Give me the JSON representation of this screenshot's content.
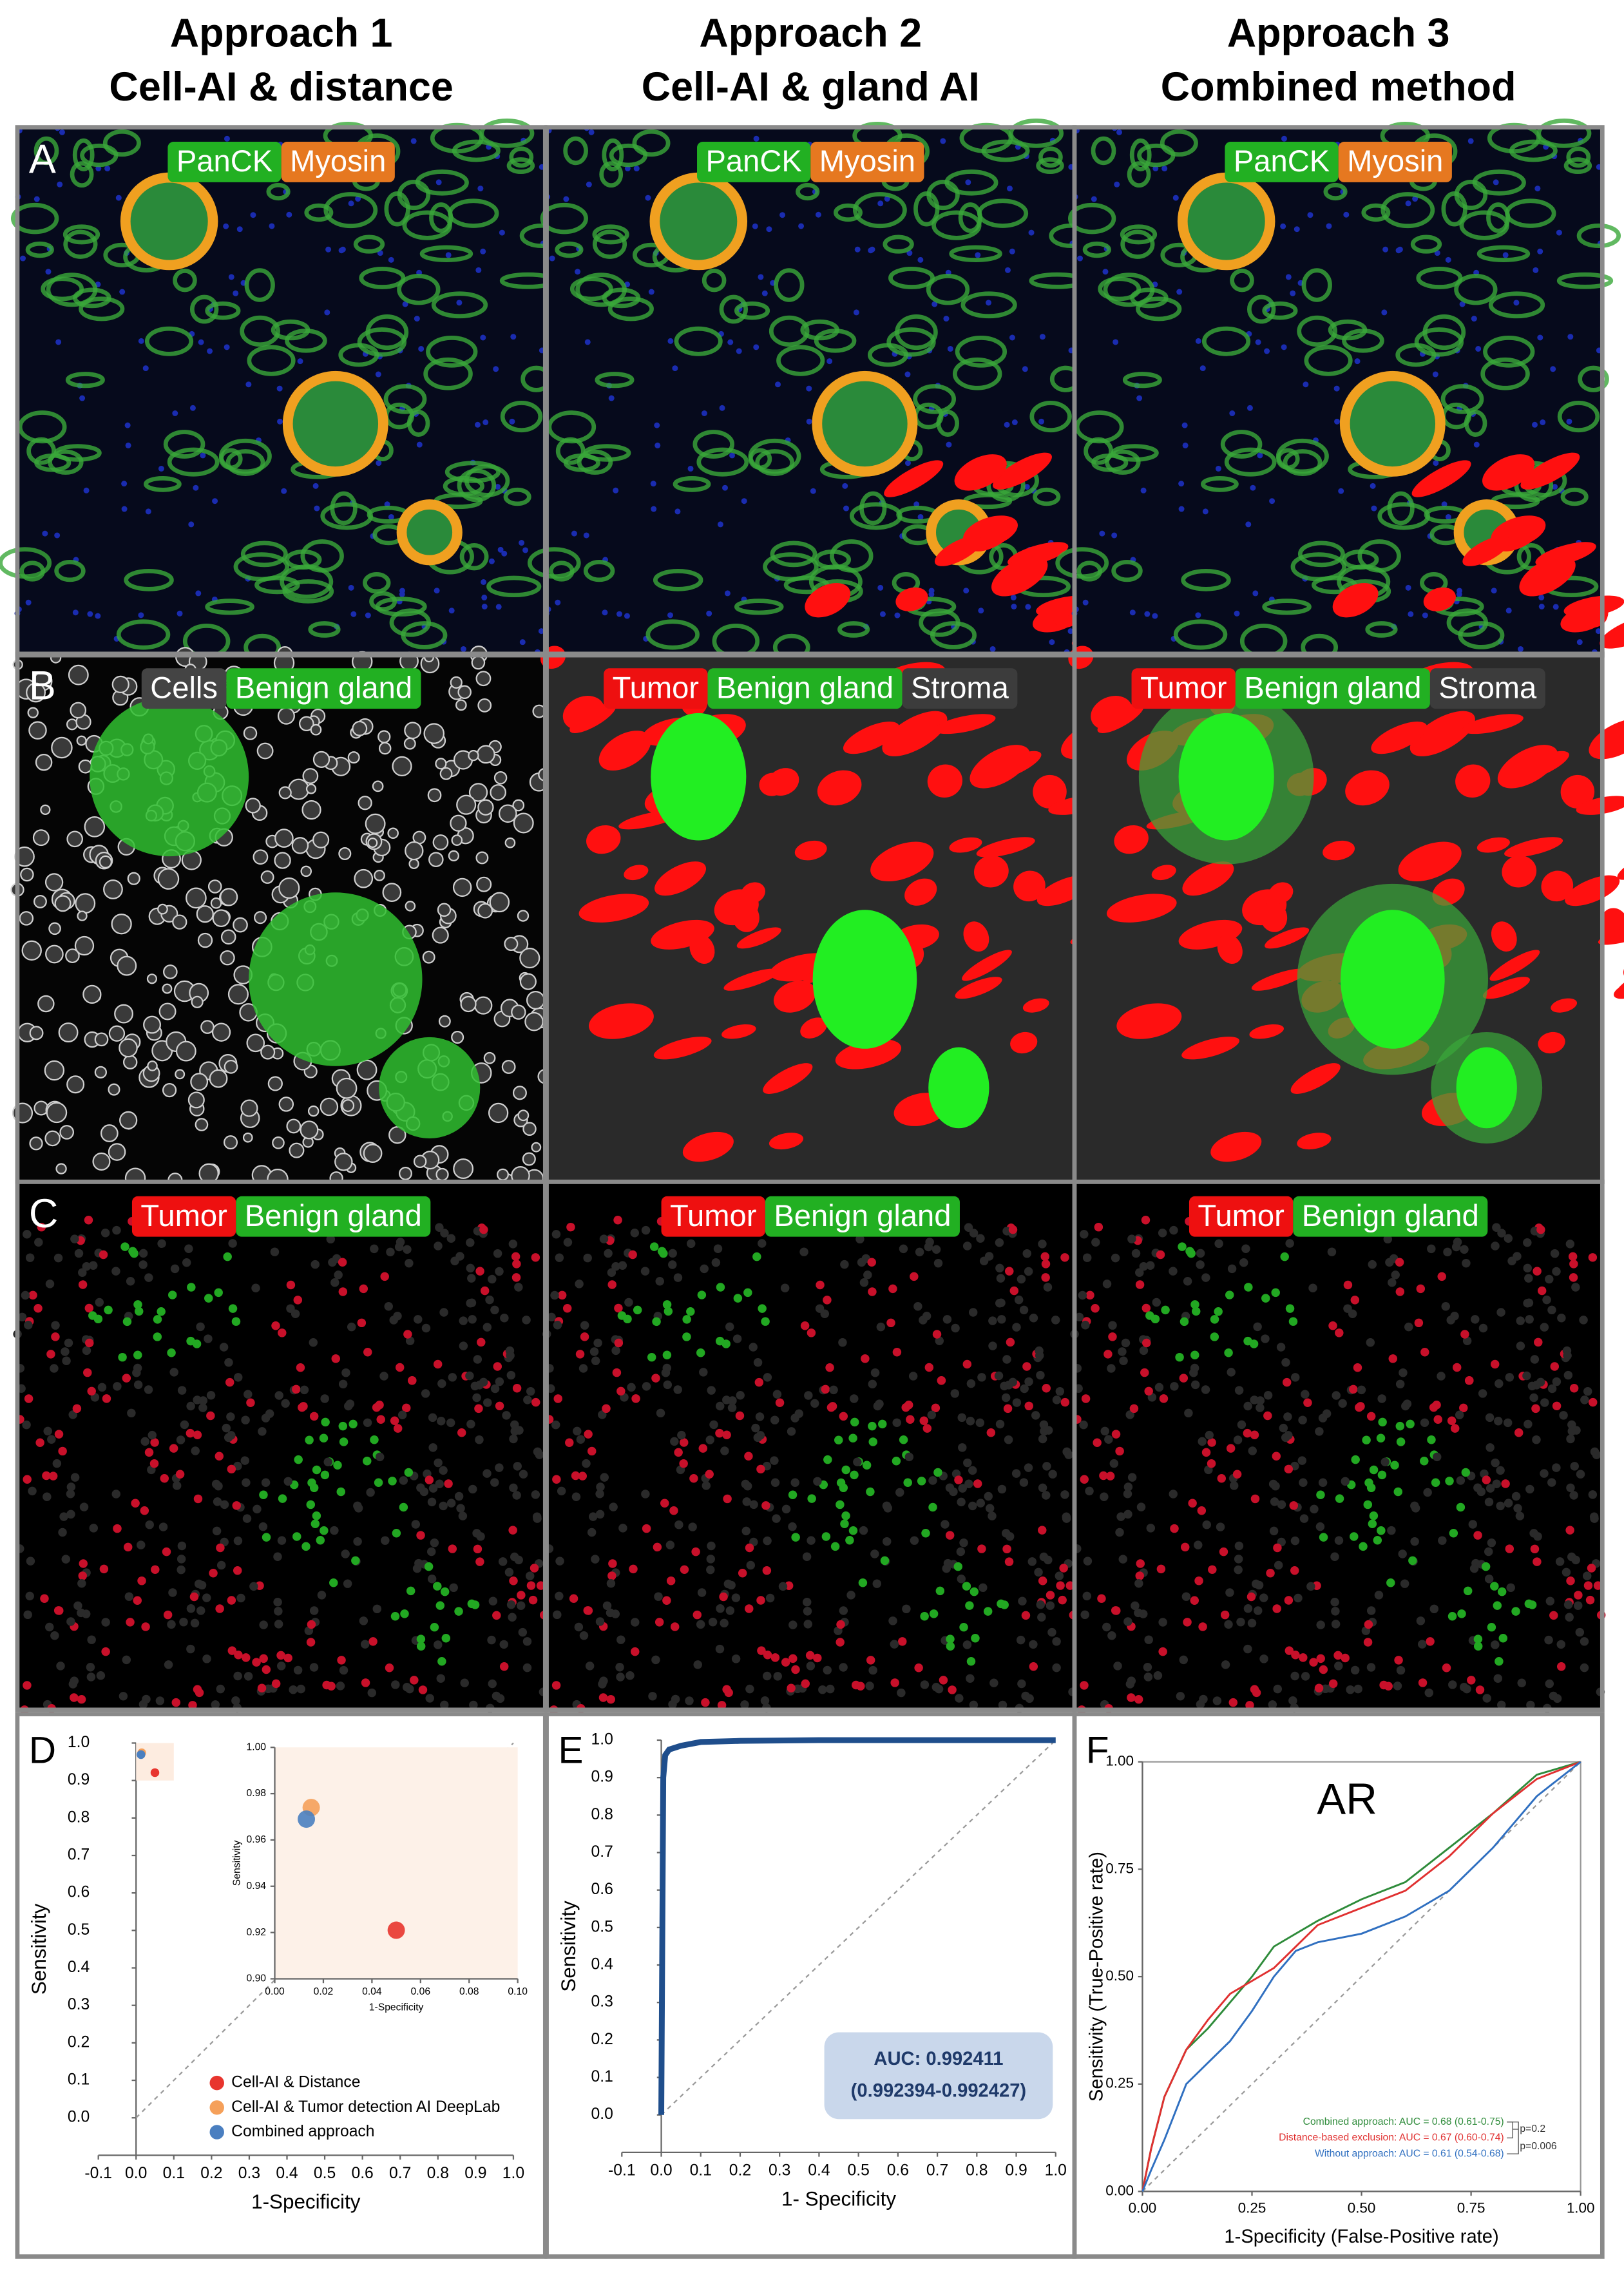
{
  "headers": [
    {
      "title": "Approach 1",
      "subtitle": "Cell-AI & distance"
    },
    {
      "title": "Approach 2",
      "subtitle": "Cell-AI & gland AI"
    },
    {
      "title": "Approach 3",
      "subtitle": "Combined method"
    }
  ],
  "rows": [
    {
      "label": "A",
      "columns": [
        {
          "legend": [
            "PanCK",
            "Myosin"
          ]
        },
        {
          "legend": [
            "PanCK",
            "Myosin"
          ]
        },
        {
          "legend": [
            "PanCK",
            "Myosin"
          ]
        }
      ]
    },
    {
      "label": "B",
      "columns": [
        {
          "legend": [
            "Cells",
            "Benign gland"
          ]
        },
        {
          "legend": [
            "Tumor",
            "Benign gland",
            "Stroma"
          ]
        },
        {
          "legend": [
            "Tumor",
            "Benign gland",
            "Stroma"
          ]
        }
      ]
    },
    {
      "label": "C",
      "columns": [
        {
          "legend": [
            "Tumor",
            "Benign gland"
          ]
        },
        {
          "legend": [
            "Tumor",
            "Benign gland"
          ]
        },
        {
          "legend": [
            "Tumor",
            "Benign gland"
          ]
        }
      ]
    }
  ],
  "chart_data": [
    {
      "panel": "D",
      "type": "scatter",
      "xlabel": "1-Specificity",
      "ylabel": "Sensitivity",
      "xlim": [
        -0.1,
        1.0
      ],
      "ylim": [
        -0.1,
        1.0
      ],
      "xticks": [
        -0.1,
        {
          "value": 0,
          "label": "0.0"
        },
        0.1,
        0.2,
        0.3,
        0.4,
        0.5,
        0.6,
        0.7,
        0.8,
        0.9,
        {
          "value": 1,
          "label": "1.0"
        }
      ],
      "yticks": [
        {
          "value": 0,
          "label": "0.0"
        },
        0.1,
        0.2,
        0.3,
        0.4,
        0.5,
        0.6,
        0.7,
        0.8,
        0.9,
        {
          "value": 1,
          "label": "1.0"
        }
      ],
      "series": [
        {
          "name": "Cell-AI & Distance",
          "color": "#e8352e",
          "x": [
            0.05
          ],
          "values": [
            0.921
          ]
        },
        {
          "name": "Cell-AI & Tumor detection AI DeepLab",
          "color": "#f5a05a",
          "x": [
            0.015
          ],
          "values": [
            0.974
          ]
        },
        {
          "name": "Combined approach",
          "color": "#4a7fc0",
          "x": [
            0.013
          ],
          "values": [
            0.969
          ]
        }
      ],
      "inset": {
        "xlabel": "1-Specificity",
        "ylabel": "Sensitivity",
        "xlim": [
          0,
          0.1
        ],
        "ylim": [
          0.9,
          1.0
        ],
        "xticks": [
          {
            "value": 0,
            "label": "0.00"
          },
          0.02,
          0.04,
          0.06,
          0.08,
          {
            "value": 0.1,
            "label": "0.10"
          }
        ],
        "yticks": [
          {
            "value": 0.9,
            "label": "0.90"
          },
          0.92,
          0.94,
          0.96,
          0.98,
          {
            "value": 1,
            "label": "1.00"
          }
        ]
      }
    },
    {
      "panel": "E",
      "type": "line",
      "xlabel": "1- Specificity",
      "ylabel": "Sensitivity",
      "xlim": [
        -0.1,
        1.0
      ],
      "ylim": [
        -0.1,
        1.0
      ],
      "xticks": [
        -0.1,
        {
          "value": 0,
          "label": "0.0"
        },
        0.1,
        0.2,
        0.3,
        0.4,
        0.5,
        0.6,
        0.7,
        0.8,
        0.9,
        {
          "value": 1,
          "label": "1.0"
        }
      ],
      "yticks": [
        {
          "value": 0,
          "label": "0.0"
        },
        0.1,
        0.2,
        0.3,
        0.4,
        0.5,
        0.6,
        0.7,
        0.8,
        0.9,
        {
          "value": 1,
          "label": "1.0"
        }
      ],
      "series": [
        {
          "color": "#1f4e8c",
          "x": [
            0,
            0.005,
            0.01,
            0.02,
            0.05,
            0.1,
            0.2,
            0.4,
            0.6,
            0.8,
            1.0
          ],
          "values": [
            0,
            0.9,
            0.96,
            0.975,
            0.985,
            0.995,
            0.998,
            1,
            1,
            1,
            1
          ]
        }
      ],
      "annotations": [
        "AUC: 0.992411",
        "(0.992394-0.992427)"
      ]
    },
    {
      "panel": "F",
      "type": "line",
      "title": "AR",
      "xlabel": "1-Specificity (False-Positive rate)",
      "ylabel": "Sensitivity (True-Positive rate)",
      "xlim": [
        0,
        1
      ],
      "ylim": [
        0,
        1
      ],
      "xticks": [
        {
          "value": 0,
          "label": "0.00"
        },
        0.25,
        {
          "value": 0.5,
          "label": "0.50"
        },
        0.75,
        {
          "value": 1,
          "label": "1.00"
        }
      ],
      "yticks": [
        {
          "value": 0,
          "label": "0.00"
        },
        0.25,
        {
          "value": 0.5,
          "label": "0.50"
        },
        0.75,
        {
          "value": 1,
          "label": "1.00"
        }
      ],
      "series": [
        {
          "name": "Combined approach: AUC = 0.68 (0.61-0.75)",
          "color": "#2e8b3a",
          "x": [
            0,
            0.02,
            0.05,
            0.1,
            0.15,
            0.2,
            0.25,
            0.3,
            0.35,
            0.4,
            0.5,
            0.6,
            0.7,
            0.8,
            0.9,
            1.0
          ],
          "values": [
            0,
            0.1,
            0.22,
            0.33,
            0.38,
            0.44,
            0.5,
            0.57,
            0.6,
            0.63,
            0.68,
            0.72,
            0.8,
            0.88,
            0.97,
            1.0
          ]
        },
        {
          "name": "Distance-based exclusion: AUC = 0.67 (0.60-0.74)",
          "color": "#e03030",
          "x": [
            0,
            0.02,
            0.05,
            0.1,
            0.15,
            0.2,
            0.25,
            0.3,
            0.35,
            0.4,
            0.5,
            0.6,
            0.7,
            0.8,
            0.9,
            1.0
          ],
          "values": [
            0,
            0.1,
            0.22,
            0.33,
            0.4,
            0.46,
            0.49,
            0.52,
            0.57,
            0.62,
            0.66,
            0.7,
            0.78,
            0.88,
            0.96,
            1.0
          ]
        },
        {
          "name": "Without approach: AUC = 0.61 (0.54-0.68)",
          "color": "#2f6fc0",
          "x": [
            0,
            0.02,
            0.05,
            0.1,
            0.15,
            0.2,
            0.25,
            0.3,
            0.35,
            0.4,
            0.5,
            0.6,
            0.7,
            0.8,
            0.9,
            1.0
          ],
          "values": [
            0,
            0.05,
            0.12,
            0.25,
            0.3,
            0.35,
            0.42,
            0.5,
            0.56,
            0.58,
            0.6,
            0.64,
            0.7,
            0.8,
            0.92,
            1.0
          ]
        }
      ],
      "annotations": [
        "p=0.2",
        "p=0.006"
      ]
    }
  ]
}
